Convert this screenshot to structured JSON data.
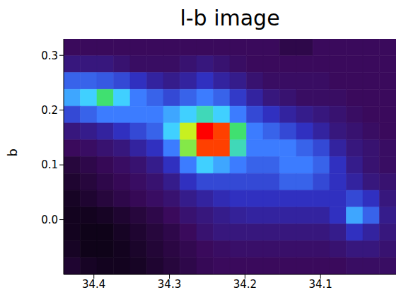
{
  "chart_data": {
    "type": "heatmap",
    "title": "l-b image",
    "y_label": "b",
    "xlim": [
      34.44,
      34.0
    ],
    "xticks": [
      34.4,
      34.3,
      34.2,
      34.1
    ],
    "ylim": [
      -0.1,
      0.33
    ],
    "yticks": [
      {
        "value": 0,
        "label": "0.0"
      },
      0.1,
      0.2,
      0.3
    ],
    "color_range": [
      0,
      10
    ],
    "cells": [
      [
        1.5,
        1.5,
        1.5,
        1.5,
        1.5,
        1.5,
        1.5,
        1.5,
        1.5,
        1.5,
        1.5,
        1.5,
        1.5,
        1.2,
        1.2,
        1.5,
        1.5,
        1.5,
        1.5,
        1.5
      ],
      [
        2,
        2,
        2,
        1.8,
        1.6,
        1.6,
        1.6,
        1.8,
        2,
        1.8,
        1.6,
        1.5,
        1.5,
        1.5,
        1.5,
        1.5,
        1.5,
        1.5,
        1.5,
        1.5
      ],
      [
        4,
        4,
        3.8,
        3.5,
        3,
        2.5,
        2.2,
        2.5,
        3,
        2.5,
        2.2,
        1.8,
        1.6,
        1.6,
        1.6,
        1.6,
        1.5,
        1.5,
        1.5,
        1.5
      ],
      [
        5,
        5.5,
        6.5,
        5.5,
        4.5,
        4,
        3.5,
        4,
        4.5,
        4,
        3.2,
        2.5,
        2,
        1.8,
        1.6,
        1.6,
        1.6,
        1.5,
        1.5,
        1.5
      ],
      [
        3.5,
        4,
        4.5,
        4.5,
        4.5,
        4.5,
        5,
        5.5,
        6,
        5.5,
        4.5,
        3.5,
        3,
        2.5,
        2.2,
        2,
        1.8,
        1.6,
        1.5,
        1.5
      ],
      [
        2,
        2.2,
        2.5,
        3,
        3.5,
        4,
        5.5,
        7.5,
        10,
        9.5,
        6.5,
        4.5,
        4,
        3.5,
        3,
        2.5,
        2,
        1.8,
        1.6,
        1.5
      ],
      [
        1.5,
        1.6,
        1.8,
        2,
        2.5,
        3,
        4.5,
        7,
        9.5,
        9.5,
        6,
        4.5,
        4.5,
        4.5,
        4,
        3.5,
        2.5,
        2,
        1.8,
        1.6
      ],
      [
        1,
        1.2,
        1.4,
        1.6,
        1.8,
        2.2,
        3,
        4.5,
        5.5,
        5,
        4.5,
        4,
        4,
        4.5,
        4.5,
        4,
        3,
        2.2,
        1.8,
        1.6
      ],
      [
        0.8,
        1,
        1.2,
        1.4,
        1.6,
        1.8,
        2.2,
        3,
        3.5,
        3.5,
        3.5,
        3.5,
        3.5,
        4,
        4,
        3.5,
        3,
        2.5,
        2,
        1.8
      ],
      [
        0.6,
        0.8,
        1,
        1.2,
        1.4,
        1.6,
        1.8,
        2.2,
        2.5,
        2.8,
        3,
        3,
        3,
        3,
        3,
        3,
        3,
        3.5,
        3,
        2
      ],
      [
        0.5,
        0.5,
        0.6,
        0.8,
        1,
        1.2,
        1.5,
        1.8,
        2,
        2.2,
        2.4,
        2.5,
        2.5,
        2.5,
        2.5,
        2.5,
        3,
        5,
        4,
        2.2
      ],
      [
        0.5,
        0.4,
        0.4,
        0.6,
        0.8,
        1,
        1.2,
        1.5,
        1.8,
        2,
        2,
        2,
        2,
        2,
        2,
        2,
        2.2,
        3,
        2.5,
        2
      ],
      [
        0.6,
        0.4,
        0.4,
        0.5,
        0.7,
        0.9,
        1.1,
        1.3,
        1.5,
        1.6,
        1.7,
        1.7,
        1.7,
        1.7,
        1.7,
        1.7,
        1.8,
        2,
        2,
        1.8
      ],
      [
        0.8,
        0.6,
        0.5,
        0.5,
        0.6,
        0.8,
        1,
        1.2,
        1.4,
        1.5,
        1.5,
        1.5,
        1.5,
        1.5,
        1.5,
        1.5,
        1.5,
        1.6,
        1.6,
        1.6
      ]
    ]
  }
}
